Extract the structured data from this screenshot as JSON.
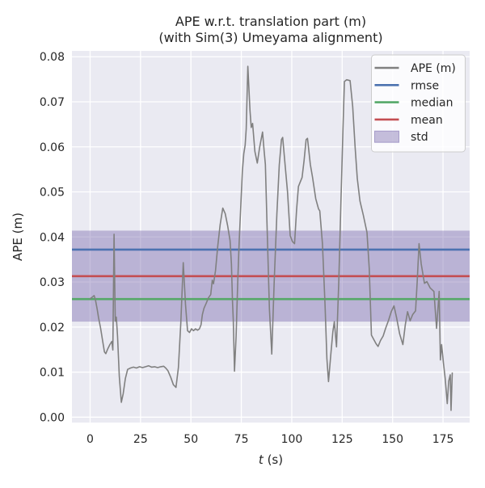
{
  "title": {
    "line1": "APE w.r.t. translation part (m)",
    "line2": "(with Sim(3) Umeyama alignment)"
  },
  "axes": {
    "xlabel_var": "t",
    "xlabel_unit": " (s)",
    "ylabel": "APE (m)"
  },
  "colors": {
    "figure_bg": "#ffffff",
    "axes_bg": "#eaeaf2",
    "grid": "#ffffff",
    "text": "#262626",
    "ape_line": "#808080",
    "rmse": "#4c72b0",
    "median": "#55a868",
    "mean": "#c44e52",
    "std_fill": "#8172b2",
    "legend_bg": "rgba(255,255,255,0.8)",
    "legend_border": "#cccccc"
  },
  "chart_data": {
    "type": "line",
    "title": "APE w.r.t. translation part (m)\n(with Sim(3) Umeyama alignment)",
    "xlabel": "t (s)",
    "ylabel": "APE (m)",
    "grid": true,
    "xlim": [
      -9.0,
      188.2
    ],
    "ylim": [
      -0.0012,
      0.0813
    ],
    "xticks": [
      0,
      25,
      50,
      75,
      100,
      125,
      150,
      175
    ],
    "x_tick_labels": [
      "0",
      "25",
      "50",
      "75",
      "100",
      "125",
      "150",
      "175"
    ],
    "yticks": [
      0.0,
      0.01,
      0.02,
      0.03,
      0.04,
      0.05,
      0.06,
      0.07,
      0.08
    ],
    "y_tick_labels": [
      "0.00",
      "0.01",
      "0.02",
      "0.03",
      "0.04",
      "0.05",
      "0.06",
      "0.07",
      "0.08"
    ],
    "stats": {
      "rmse": 0.0372,
      "mean": 0.0313,
      "median": 0.0262,
      "std": 0.0101
    },
    "hlines": [
      {
        "name": "rmse",
        "value": 0.0372,
        "color": "#4c72b0"
      },
      {
        "name": "median",
        "value": 0.0262,
        "color": "#55a868"
      },
      {
        "name": "mean",
        "value": 0.0313,
        "color": "#c44e52"
      }
    ],
    "band": {
      "name": "std",
      "low": 0.0212,
      "high": 0.0414,
      "color": "#8172b2",
      "opacity": 0.45
    },
    "legend": {
      "position": "upper right",
      "entries": [
        {
          "label": "APE (m)",
          "color": "#808080",
          "type": "line"
        },
        {
          "label": "rmse",
          "color": "#4c72b0",
          "type": "line"
        },
        {
          "label": "median",
          "color": "#55a868",
          "type": "line"
        },
        {
          "label": "mean",
          "color": "#c44e52",
          "type": "line"
        },
        {
          "label": "std",
          "color": "#8172b2",
          "type": "patch"
        }
      ]
    },
    "series": [
      {
        "name": "APE (m)",
        "color": "#808080",
        "points": [
          [
            0,
            0.0263
          ],
          [
            1,
            0.0266
          ],
          [
            2,
            0.027
          ],
          [
            2.6,
            0.0262
          ],
          [
            3.5,
            0.024
          ],
          [
            4.2,
            0.0221
          ],
          [
            5.2,
            0.0198
          ],
          [
            6.2,
            0.017
          ],
          [
            7.1,
            0.0145
          ],
          [
            7.8,
            0.0141
          ],
          [
            8.8,
            0.0152
          ],
          [
            9.8,
            0.0161
          ],
          [
            10.8,
            0.0168
          ],
          [
            11.3,
            0.0149
          ],
          [
            11.9,
            0.0406
          ],
          [
            12.5,
            0.0213
          ],
          [
            13.0,
            0.0222
          ],
          [
            13.6,
            0.018
          ],
          [
            14.5,
            0.009
          ],
          [
            15.5,
            0.0033
          ],
          [
            16.4,
            0.0052
          ],
          [
            17.5,
            0.0086
          ],
          [
            18.6,
            0.0106
          ],
          [
            20,
            0.0109
          ],
          [
            21.5,
            0.0111
          ],
          [
            23,
            0.0109
          ],
          [
            24.5,
            0.0112
          ],
          [
            26,
            0.011
          ],
          [
            27.5,
            0.0112
          ],
          [
            29,
            0.0114
          ],
          [
            30.5,
            0.0111
          ],
          [
            32,
            0.0112
          ],
          [
            33.5,
            0.011
          ],
          [
            35,
            0.0112
          ],
          [
            36.5,
            0.0113
          ],
          [
            37.5,
            0.0109
          ],
          [
            38.6,
            0.0103
          ],
          [
            40,
            0.0088
          ],
          [
            41.3,
            0.0072
          ],
          [
            42.6,
            0.0066
          ],
          [
            43.8,
            0.011
          ],
          [
            45,
            0.021
          ],
          [
            46.2,
            0.0343
          ],
          [
            47.3,
            0.025
          ],
          [
            48.3,
            0.0192
          ],
          [
            49.3,
            0.0188
          ],
          [
            50.3,
            0.0196
          ],
          [
            51.3,
            0.0192
          ],
          [
            52.3,
            0.0196
          ],
          [
            53.3,
            0.0193
          ],
          [
            54.2,
            0.0196
          ],
          [
            55,
            0.0205
          ],
          [
            55.7,
            0.0228
          ],
          [
            56.5,
            0.0242
          ],
          [
            57.5,
            0.0252
          ],
          [
            58.7,
            0.0265
          ],
          [
            59.8,
            0.0272
          ],
          [
            60.6,
            0.0304
          ],
          [
            61.2,
            0.0296
          ],
          [
            62.2,
            0.0325
          ],
          [
            63.3,
            0.038
          ],
          [
            64.5,
            0.0428
          ],
          [
            65.8,
            0.0464
          ],
          [
            67,
            0.0452
          ],
          [
            68.2,
            0.0425
          ],
          [
            69.4,
            0.0392
          ],
          [
            70.1,
            0.034
          ],
          [
            70.6,
            0.0258
          ],
          [
            71,
            0.0215
          ],
          [
            71.6,
            0.0102
          ],
          [
            72.4,
            0.018
          ],
          [
            73.2,
            0.03
          ],
          [
            73.9,
            0.0385
          ],
          [
            74.6,
            0.0458
          ],
          [
            75.5,
            0.0545
          ],
          [
            76.2,
            0.0585
          ],
          [
            76.9,
            0.0604
          ],
          [
            77.4,
            0.064
          ],
          [
            78.2,
            0.0779
          ],
          [
            79.3,
            0.068
          ],
          [
            79.9,
            0.0643
          ],
          [
            80.6,
            0.0652
          ],
          [
            81.7,
            0.059
          ],
          [
            82.9,
            0.0564
          ],
          [
            84.1,
            0.06
          ],
          [
            85.5,
            0.0633
          ],
          [
            86.3,
            0.059
          ],
          [
            86.9,
            0.0561
          ],
          [
            87.7,
            0.043
          ],
          [
            88.9,
            0.024
          ],
          [
            90.1,
            0.014
          ],
          [
            91.3,
            0.03
          ],
          [
            92.6,
            0.045
          ],
          [
            93.8,
            0.056
          ],
          [
            94.9,
            0.0616
          ],
          [
            95.5,
            0.0621
          ],
          [
            96.7,
            0.056
          ],
          [
            97.9,
            0.05
          ],
          [
            99.2,
            0.0403
          ],
          [
            100.3,
            0.039
          ],
          [
            101.4,
            0.0385
          ],
          [
            102.4,
            0.046
          ],
          [
            103.3,
            0.0512
          ],
          [
            104.1,
            0.0521
          ],
          [
            105.1,
            0.0532
          ],
          [
            106.1,
            0.057
          ],
          [
            107.1,
            0.0616
          ],
          [
            107.8,
            0.0619
          ],
          [
            109.2,
            0.0561
          ],
          [
            110.3,
            0.0533
          ],
          [
            111.9,
            0.0485
          ],
          [
            113.3,
            0.0462
          ],
          [
            113.9,
            0.0458
          ],
          [
            115.2,
            0.0385
          ],
          [
            116.5,
            0.025
          ],
          [
            117.4,
            0.013
          ],
          [
            118.2,
            0.0079
          ],
          [
            119.4,
            0.014
          ],
          [
            120.4,
            0.019
          ],
          [
            121.1,
            0.0212
          ],
          [
            122.2,
            0.0156
          ],
          [
            123.3,
            0.03
          ],
          [
            124.4,
            0.048
          ],
          [
            125.4,
            0.064
          ],
          [
            126.1,
            0.0745
          ],
          [
            127.2,
            0.0749
          ],
          [
            128.9,
            0.0747
          ],
          [
            130.2,
            0.069
          ],
          [
            131.4,
            0.06
          ],
          [
            132.5,
            0.053
          ],
          [
            133.8,
            0.048
          ],
          [
            135.5,
            0.0448
          ],
          [
            137.3,
            0.041
          ],
          [
            138.4,
            0.033
          ],
          [
            139.5,
            0.0182
          ],
          [
            140.7,
            0.0172
          ],
          [
            141.8,
            0.0163
          ],
          [
            142.8,
            0.0157
          ],
          [
            144,
            0.017
          ],
          [
            145.3,
            0.018
          ],
          [
            146.5,
            0.0197
          ],
          [
            148,
            0.0215
          ],
          [
            149.4,
            0.0235
          ],
          [
            150.7,
            0.0247
          ],
          [
            152,
            0.022
          ],
          [
            153.5,
            0.0185
          ],
          [
            155.1,
            0.0161
          ],
          [
            156.3,
            0.0205
          ],
          [
            157.4,
            0.0234
          ],
          [
            158.7,
            0.0214
          ],
          [
            160,
            0.0228
          ],
          [
            161.4,
            0.0236
          ],
          [
            162.2,
            0.03
          ],
          [
            163.1,
            0.0385
          ],
          [
            164.2,
            0.034
          ],
          [
            165.8,
            0.0297
          ],
          [
            167,
            0.0301
          ],
          [
            168.6,
            0.0287
          ],
          [
            170.5,
            0.0279
          ],
          [
            171.8,
            0.0197
          ],
          [
            173.1,
            0.0279
          ],
          [
            173.7,
            0.0127
          ],
          [
            174.3,
            0.0161
          ],
          [
            175.2,
            0.012
          ],
          [
            176.1,
            0.0085
          ],
          [
            177.1,
            0.003
          ],
          [
            177.8,
            0.008
          ],
          [
            178.6,
            0.0094
          ],
          [
            179.0,
            0.0015
          ],
          [
            179.6,
            0.0098
          ]
        ]
      }
    ]
  }
}
